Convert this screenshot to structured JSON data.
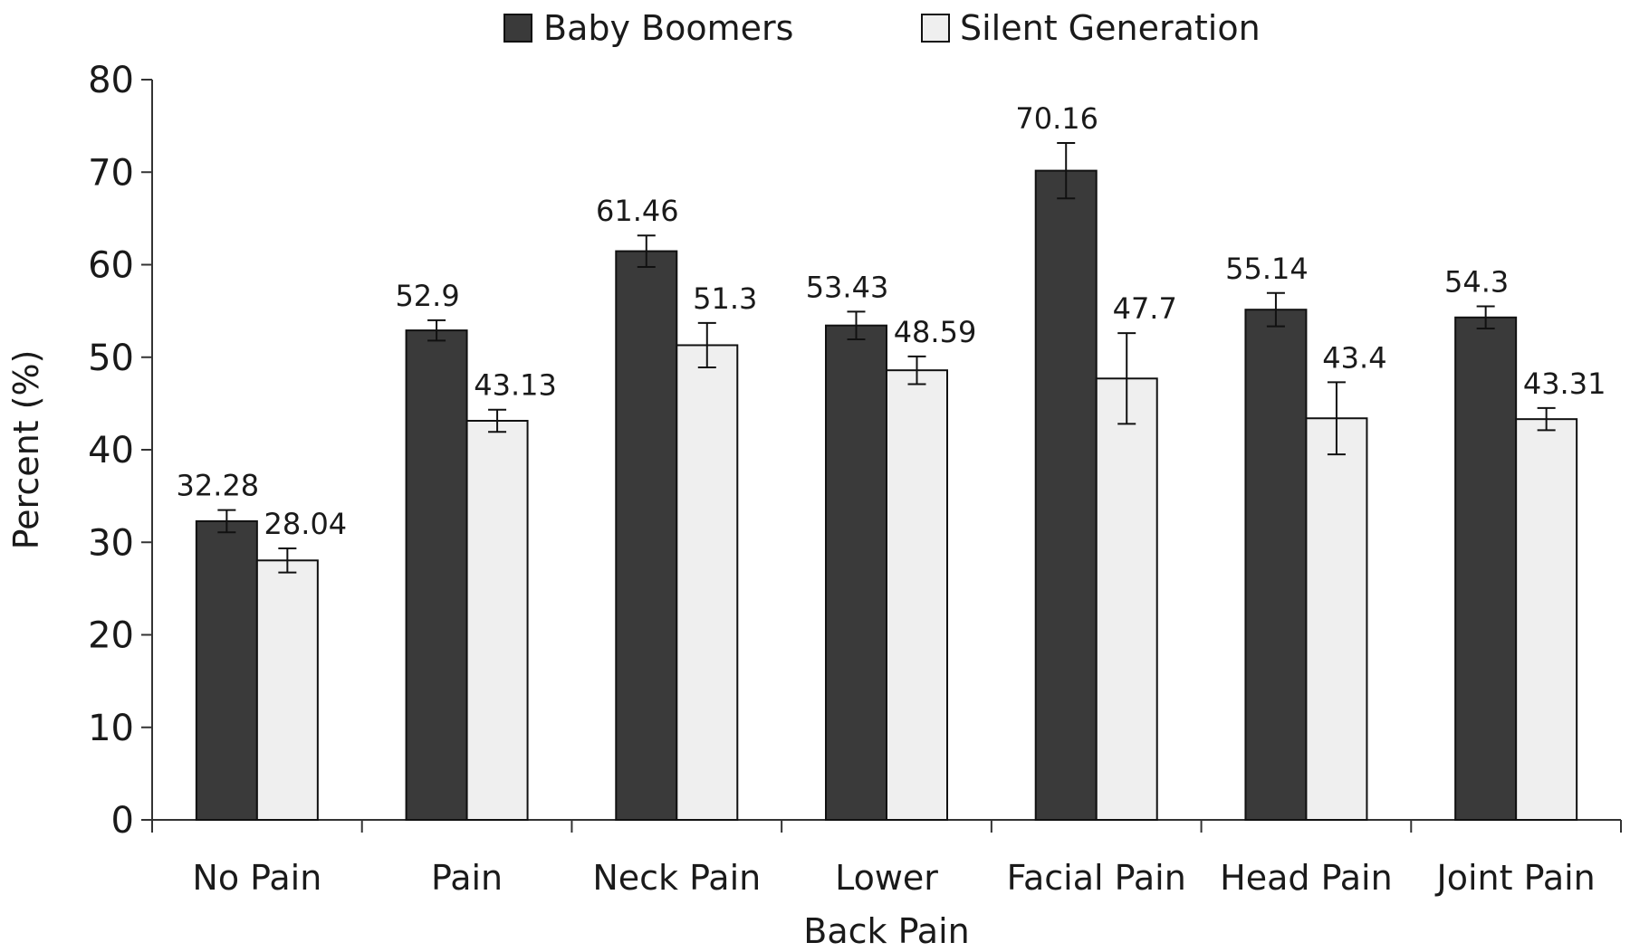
{
  "chart_data": {
    "type": "bar",
    "ylabel": "Percent (%)",
    "xlabel": "",
    "ylim": [
      0,
      80
    ],
    "yticks": [
      0,
      10,
      20,
      30,
      40,
      50,
      60,
      70,
      80
    ],
    "grid": false,
    "legend_position": "top-center",
    "categories": [
      [
        "No Pain"
      ],
      [
        "Pain"
      ],
      [
        "Neck Pain"
      ],
      [
        "Lower",
        "Back Pain"
      ],
      [
        "Facial Pain"
      ],
      [
        "Head Pain"
      ],
      [
        "Joint Pain"
      ]
    ],
    "series": [
      {
        "name": "Baby Boomers",
        "color": "#3a3a3a",
        "values": [
          32.28,
          52.9,
          61.46,
          53.43,
          70.16,
          55.14,
          54.3
        ],
        "labels": [
          "32.28",
          "52.9",
          "61.46",
          "53.43",
          "70.16",
          "55.14",
          "54.3"
        ],
        "error": [
          1.2,
          1.1,
          1.7,
          1.5,
          3.0,
          1.8,
          1.2
        ]
      },
      {
        "name": "Silent Generation",
        "color": "#efefef",
        "values": [
          28.04,
          43.13,
          51.3,
          48.59,
          47.7,
          43.4,
          43.31
        ],
        "labels": [
          "28.04",
          "43.13",
          "51.3",
          "48.59",
          "47.7",
          "43.4",
          "43.31"
        ],
        "error": [
          1.3,
          1.2,
          2.4,
          1.5,
          4.9,
          3.9,
          1.2
        ]
      }
    ]
  }
}
